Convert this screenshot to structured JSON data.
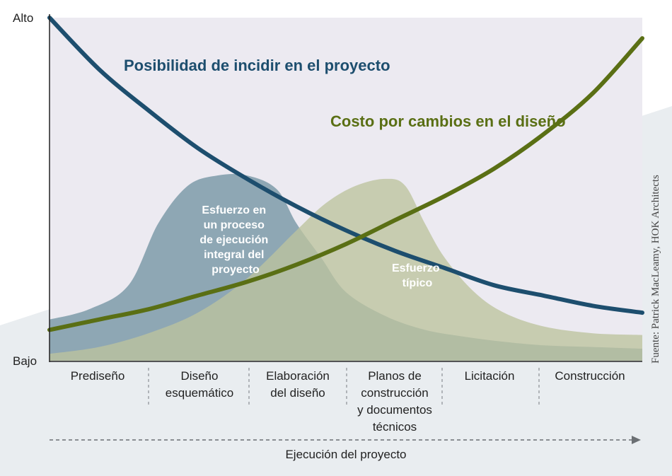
{
  "chart_data": {
    "type": "area",
    "y_axis": {
      "high_label": "Alto",
      "low_label": "Bajo",
      "ylim": [
        0,
        100
      ]
    },
    "x_axis": {
      "label": "Ejecución del proyecto",
      "xlim": [
        0,
        6
      ],
      "phases": [
        [
          "Prediseño"
        ],
        [
          "Diseño",
          "esquemático"
        ],
        [
          "Elaboración",
          "del diseño"
        ],
        [
          "Planos de",
          "construcción",
          "y documentos",
          "técnicos"
        ],
        [
          "Licitación"
        ],
        [
          "Construcción"
        ]
      ]
    },
    "series": [
      {
        "name": "Posibilidad de incidir en el proyecto",
        "kind": "line",
        "color": "#1d4e6e",
        "x": [
          0,
          0.5,
          1,
          1.5,
          2,
          2.5,
          3,
          3.5,
          4,
          4.5,
          5,
          5.5,
          6
        ],
        "y": [
          100,
          85,
          73,
          62,
          53,
          45,
          38,
          32,
          27,
          22,
          19,
          16,
          14
        ]
      },
      {
        "name": "Costo por cambios en el diseño",
        "kind": "line",
        "color": "#5a6f14",
        "x": [
          0,
          0.5,
          1,
          1.5,
          2,
          2.5,
          3,
          3.5,
          4,
          4.5,
          5,
          5.5,
          6
        ],
        "y": [
          9,
          12,
          15,
          19,
          23,
          28,
          34,
          41,
          48,
          56,
          66,
          78,
          94
        ]
      },
      {
        "name": "Esfuerzo en un proceso de ejecución integral del proyecto",
        "kind": "area",
        "color": "#8ea7b4",
        "label_lines": [
          "Esfuerzo en",
          "un proceso",
          "de ejecución",
          "integral del",
          "proyecto"
        ],
        "x": [
          0,
          0.4,
          0.8,
          1.1,
          1.4,
          1.7,
          2.0,
          2.3,
          2.5,
          2.75,
          3.0,
          3.4,
          3.8,
          4.2,
          4.6,
          5.0,
          5.5,
          6
        ],
        "y": [
          12,
          15,
          22,
          40,
          51,
          54,
          54,
          50,
          40,
          30,
          20,
          13,
          9,
          7,
          5.5,
          4.5,
          4,
          3.5
        ]
      },
      {
        "name": "Esfuerzo típico",
        "kind": "area",
        "color": "#bcc39d",
        "label_lines": [
          "Esfuerzo",
          "típico"
        ],
        "x": [
          0,
          0.5,
          1,
          1.5,
          2,
          2.5,
          2.8,
          3.1,
          3.4,
          3.6,
          3.8,
          4.0,
          4.3,
          4.6,
          5.0,
          5.5,
          6
        ],
        "y": [
          2,
          4,
          8,
          14,
          24,
          38,
          46,
          51,
          53,
          51,
          40,
          30,
          20,
          14,
          10,
          8,
          7.5
        ]
      }
    ],
    "grid": false,
    "source": "Fuente: Patrick MacLeamy, HOK Architects"
  }
}
